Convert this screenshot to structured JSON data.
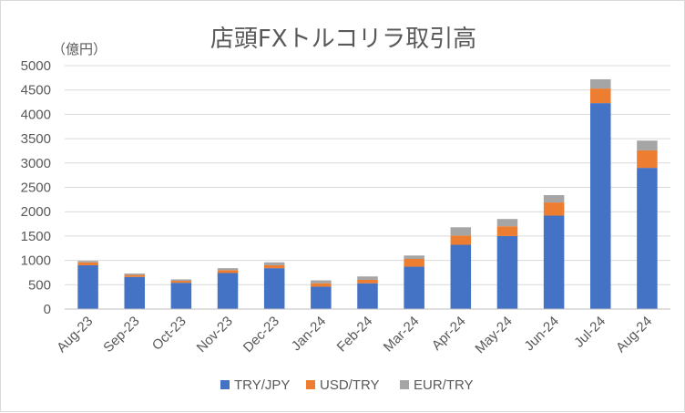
{
  "chart_data": {
    "type": "bar",
    "stacked": true,
    "title": "店頭FXトルコリラ取引高",
    "ylabel": "（億円）",
    "ylim": [
      0,
      5000
    ],
    "yticks": [
      0,
      500,
      1000,
      1500,
      2000,
      2500,
      3000,
      3500,
      4000,
      4500,
      5000
    ],
    "grid": true,
    "legend": "bottom",
    "categories": [
      "Aug-23",
      "Sep-23",
      "Oct-23",
      "Nov-23",
      "Dec-23",
      "Jan-24",
      "Feb-24",
      "Mar-24",
      "Apr-24",
      "May-24",
      "Jun-24",
      "Jul-24",
      "Aug-24"
    ],
    "series": [
      {
        "name": "TRY/JPY",
        "color": "#4472c4",
        "values": [
          900,
          660,
          540,
          740,
          840,
          460,
          530,
          870,
          1320,
          1500,
          1920,
          4230,
          2900
        ]
      },
      {
        "name": "USD/TRY",
        "color": "#ed7d31",
        "values": [
          60,
          40,
          40,
          60,
          60,
          70,
          70,
          160,
          190,
          200,
          270,
          300,
          360
        ]
      },
      {
        "name": "EUR/TRY",
        "color": "#a5a5a5",
        "values": [
          30,
          30,
          30,
          40,
          60,
          60,
          70,
          70,
          170,
          150,
          150,
          190,
          200
        ]
      }
    ]
  }
}
